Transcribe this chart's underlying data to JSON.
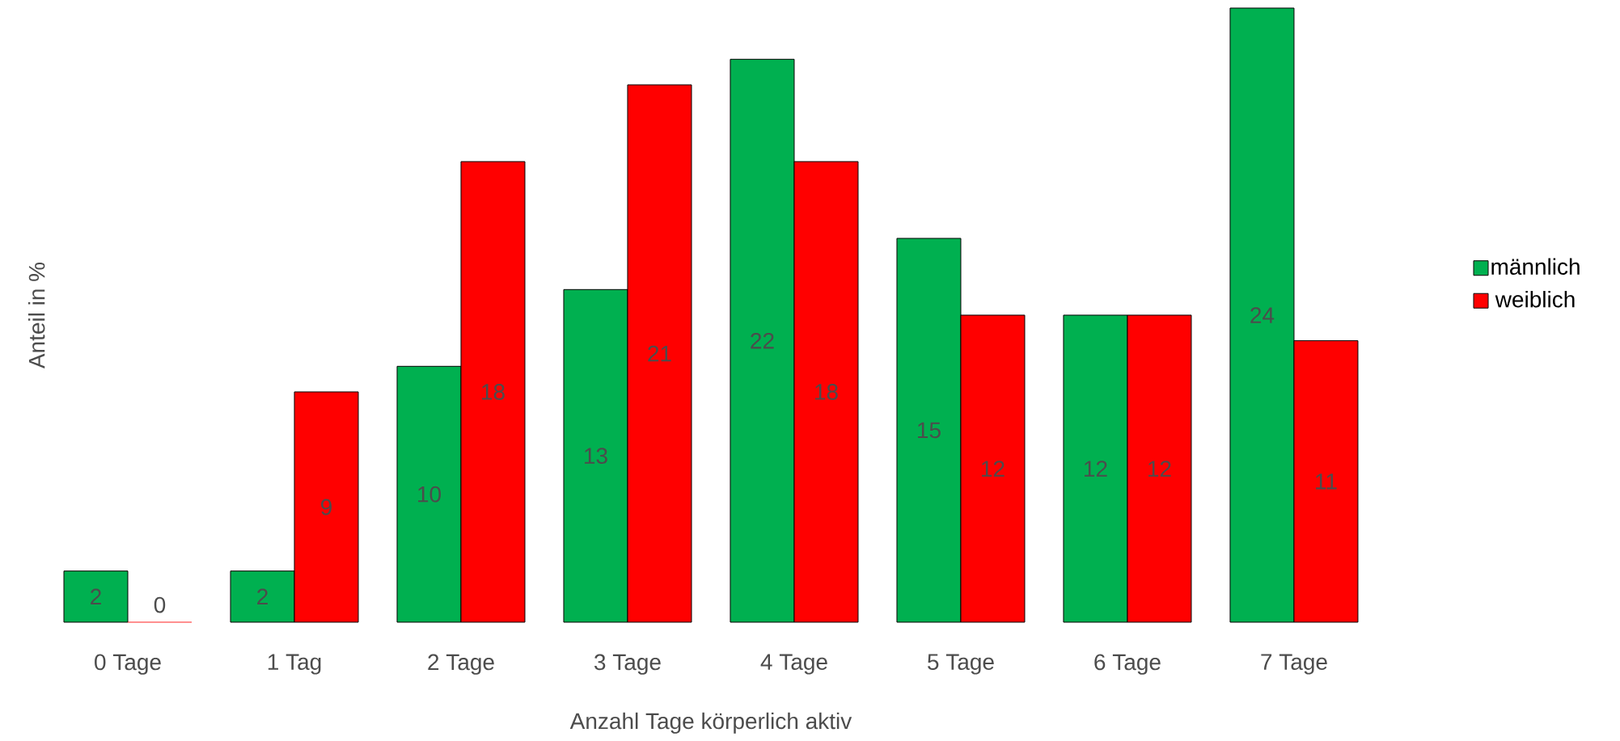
{
  "chart_data": {
    "type": "bar",
    "xlabel": "Anzahl Tage körperlich aktiv",
    "ylabel": "Anteil in %",
    "categories": [
      "0 Tage",
      "1 Tag",
      "2 Tage",
      "3 Tage",
      "4 Tage",
      "5 Tage",
      "6 Tage",
      "7 Tage"
    ],
    "series": [
      {
        "name": "männlich",
        "color": "#00b050",
        "values": [
          2,
          2,
          10,
          13,
          22,
          15,
          12,
          24
        ]
      },
      {
        "name": "weiblich",
        "color": "#ff0000",
        "values": [
          0,
          9,
          18,
          21,
          18,
          12,
          12,
          11
        ]
      }
    ],
    "data_labels": true,
    "legend": "right"
  }
}
